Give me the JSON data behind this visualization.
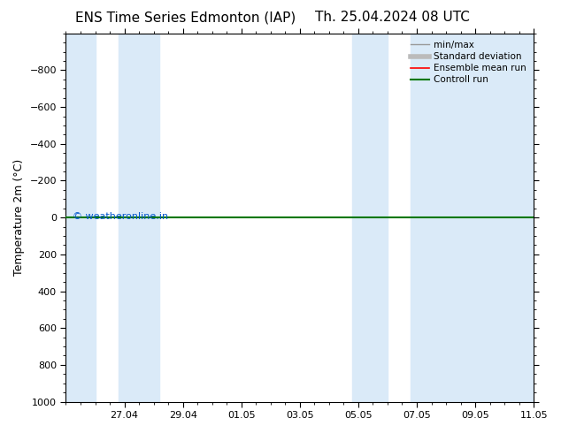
{
  "title_left": "ENS Time Series Edmonton (IAP)",
  "title_right": "Th. 25.04.2024 08 UTC",
  "ylabel": "Temperature 2m (°C)",
  "ylim": [
    -1000,
    1000
  ],
  "yticks": [
    -800,
    -600,
    -400,
    -200,
    0,
    200,
    400,
    600,
    800,
    1000
  ],
  "xlim": [
    0,
    16
  ],
  "xtick_labels": [
    "27.04",
    "29.04",
    "01.05",
    "03.05",
    "05.05",
    "07.05",
    "09.05",
    "11.05"
  ],
  "xtick_positions": [
    2,
    4,
    6,
    8,
    10,
    12,
    14,
    16
  ],
  "blue_bands": [
    [
      0,
      1.0
    ],
    [
      1.8,
      3.2
    ],
    [
      9.8,
      11.0
    ],
    [
      11.8,
      16
    ]
  ],
  "green_line_y": 0,
  "watermark": "© weatheronline.in",
  "watermark_color": "#0055cc",
  "bg_color": "#ffffff",
  "plot_bg": "#ffffff",
  "blue_band_color": "#daeaf8",
  "legend_items": [
    {
      "label": "min/max",
      "color": "#999999",
      "lw": 1.0
    },
    {
      "label": "Standard deviation",
      "color": "#bbbbbb",
      "lw": 4
    },
    {
      "label": "Ensemble mean run",
      "color": "#ff0000",
      "lw": 1.2
    },
    {
      "label": "Controll run",
      "color": "#007700",
      "lw": 1.5
    }
  ],
  "title_fontsize": 11,
  "axis_fontsize": 9,
  "tick_fontsize": 8,
  "legend_fontsize": 7.5
}
